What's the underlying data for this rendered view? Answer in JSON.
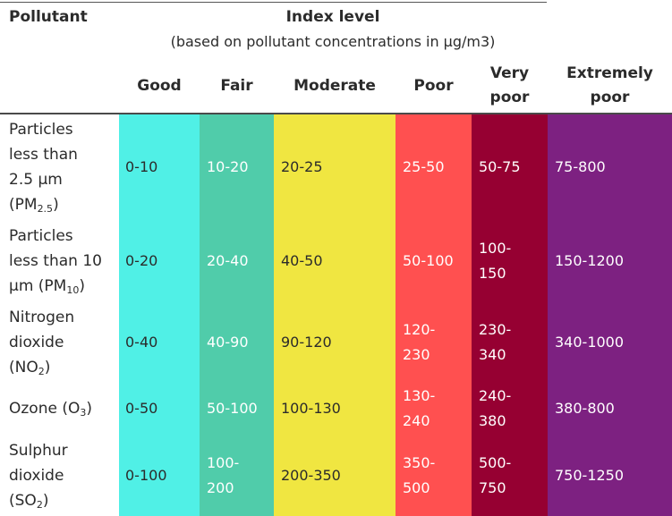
{
  "header": {
    "pollutant": "Pollutant",
    "index_level": "Index level",
    "subtitle": "(based on pollutant concentrations in µg/m3)"
  },
  "levels": [
    {
      "label": "Good",
      "color": "#50f0e6"
    },
    {
      "label": "Fair",
      "color": "#50ccaa"
    },
    {
      "label": "Moderate",
      "color": "#f0e641"
    },
    {
      "label": "Poor",
      "color": "#ff5050"
    },
    {
      "label": "Very\npoor",
      "color": "#960032"
    },
    {
      "label": "Extremely\npoor",
      "color": "#7d2181"
    }
  ],
  "rows": [
    {
      "label": "Particles\nless than\n2.5 µm\n(PM",
      "sub": "2.5",
      "tail": ")",
      "values": [
        "0-10",
        "10-20",
        "20-25",
        "25-50",
        "50-75",
        "75-800"
      ]
    },
    {
      "label": "Particles\nless than 10\nµm (PM",
      "sub": "10",
      "tail": ")",
      "values": [
        "0-20",
        "20-40",
        "40-50",
        "50-100",
        "100-\n150",
        "150-1200"
      ]
    },
    {
      "label": "Nitrogen\ndioxide\n(NO",
      "sub": "2",
      "tail": ")",
      "values": [
        "0-40",
        "40-90",
        "90-120",
        "120-\n230",
        "230-\n340",
        "340-1000"
      ]
    },
    {
      "label": "Ozone (O",
      "sub": "3",
      "tail": ")",
      "values": [
        "0-50",
        "50-100",
        "100-130",
        "130-\n240",
        "240-\n380",
        "380-800"
      ]
    },
    {
      "label": "Sulphur\ndioxide\n(SO",
      "sub": "2",
      "tail": ")",
      "values": [
        "0-100",
        "100-\n200",
        "200-350",
        "350-\n500",
        "500-\n750",
        "750-1250"
      ]
    }
  ]
}
